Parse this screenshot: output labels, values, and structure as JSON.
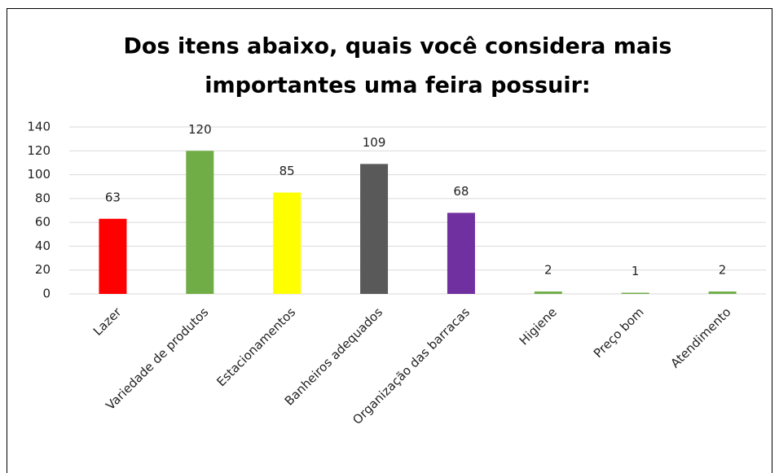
{
  "chart_data": {
    "type": "bar",
    "title": [
      "Dos itens abaixo, quais você considera mais",
      "importantes uma feira possuir:"
    ],
    "categories": [
      "Lazer",
      "Variedade de produtos",
      "Estacionamentos",
      "Banheiros adequados",
      "Organização das barracas",
      "Higiene",
      "Preço bom",
      "Atendimento"
    ],
    "values": [
      63,
      120,
      85,
      109,
      68,
      2,
      1,
      2
    ],
    "colors": [
      "#ff0000",
      "#70ad47",
      "#ffff00",
      "#595959",
      "#7030a0",
      "#70ad47",
      "#70ad47",
      "#70ad47"
    ],
    "ylim": [
      0,
      140
    ],
    "yticks": [
      0,
      20,
      40,
      60,
      80,
      100,
      120,
      140
    ],
    "grid": true
  }
}
